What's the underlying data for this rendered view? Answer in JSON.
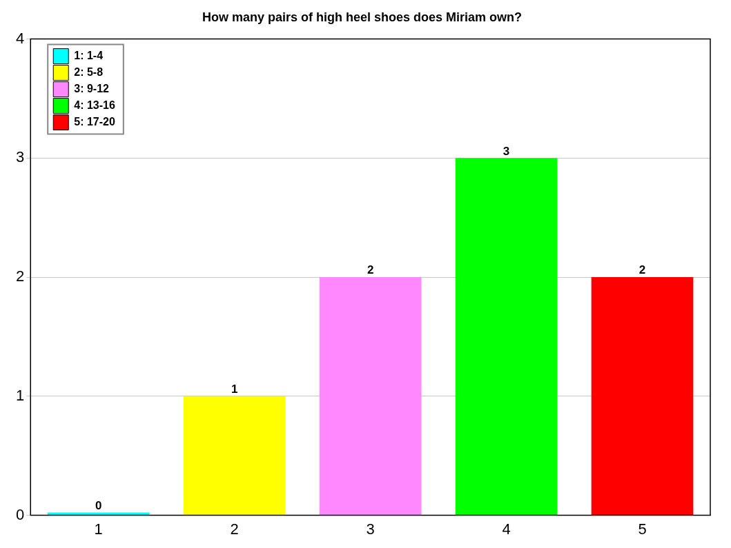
{
  "chart_data": {
    "type": "bar",
    "title": "How many pairs of high heel shoes does Miriam own?",
    "categories": [
      "1",
      "2",
      "3",
      "4",
      "5"
    ],
    "series": [
      {
        "name": "1: 1-4",
        "color": "#00ffff",
        "values": [
          0,
          null,
          null,
          null,
          null
        ]
      },
      {
        "name": "2: 5-8",
        "color": "#ffff00",
        "values": [
          null,
          1,
          null,
          null,
          null
        ]
      },
      {
        "name": "3: 9-12",
        "color": "#ff88ff",
        "values": [
          null,
          null,
          2,
          null,
          null
        ]
      },
      {
        "name": "4: 13-16",
        "color": "#00ff00",
        "values": [
          null,
          null,
          null,
          3,
          null
        ]
      },
      {
        "name": "5: 17-20",
        "color": "#ff0000",
        "values": [
          null,
          null,
          null,
          null,
          2
        ]
      }
    ],
    "ylim": [
      0,
      4
    ],
    "yticks": [
      0,
      1,
      2,
      3,
      4
    ],
    "grid": "y",
    "legend": "top left",
    "data_labels": true
  }
}
